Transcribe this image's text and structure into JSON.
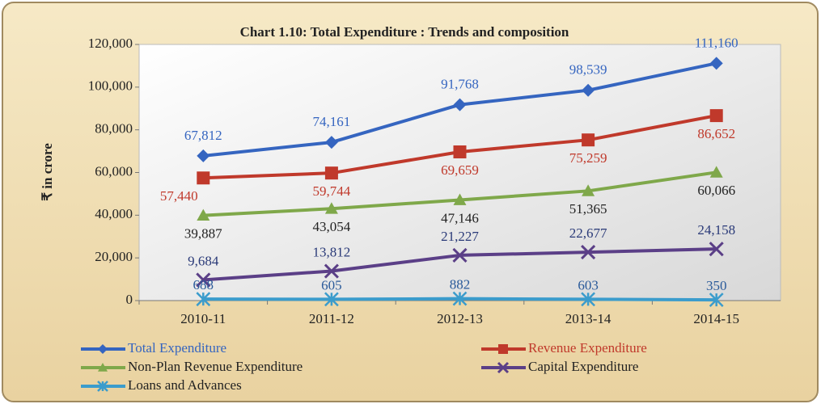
{
  "chart_data": {
    "type": "line",
    "title": "Chart 1.10: Total Expenditure : Trends and composition",
    "ylabel": "₹ in crore",
    "categories": [
      "2010-11",
      "2011-12",
      "2012-13",
      "2013-14",
      "2014-15"
    ],
    "series": [
      {
        "name": "Total Expenditure",
        "color": "#3565c0",
        "marker": "diamond",
        "values": [
          67812,
          74161,
          91768,
          98539,
          111160
        ],
        "value_labels": [
          "67,812",
          "74,161",
          "91,768",
          "98,539",
          "111,160"
        ]
      },
      {
        "name": "Revenue Expenditure",
        "color": "#c0392b",
        "marker": "square",
        "values": [
          57440,
          59744,
          69659,
          75259,
          86652
        ],
        "value_labels": [
          "57,440",
          "59,744",
          "69,659",
          "75,259",
          "86,652"
        ]
      },
      {
        "name": "Non-Plan Revenue Expenditure",
        "color": "#7fa84a",
        "marker": "triangle",
        "values": [
          39887,
          43054,
          47146,
          51365,
          60066
        ],
        "value_labels": [
          "39,887",
          "43,054",
          "47,146",
          "51,365",
          "60,066"
        ]
      },
      {
        "name": "Capital Expenditure",
        "color": "#5b3f87",
        "marker": "x",
        "values": [
          9684,
          13812,
          21227,
          22677,
          24158
        ],
        "value_labels": [
          "9,684",
          "13,812",
          "21,227",
          "22,677",
          "24,158"
        ]
      },
      {
        "name": "Loans and Advances",
        "color": "#3b9ccc",
        "marker": "star",
        "values": [
          688,
          605,
          882,
          603,
          350
        ]
      }
    ],
    "ylim": [
      0,
      120000
    ],
    "yticks": [
      0,
      {
        "value": 20000,
        "label": "20,000"
      },
      {
        "value": 40000,
        "label": "40,000"
      },
      {
        "value": 60000,
        "label": "60,000"
      },
      {
        "value": 80000,
        "label": "80,000"
      },
      {
        "value": 100000,
        "label": "100,000"
      },
      {
        "value": 120000,
        "label": "120,000"
      }
    ],
    "legend": "bottom"
  }
}
